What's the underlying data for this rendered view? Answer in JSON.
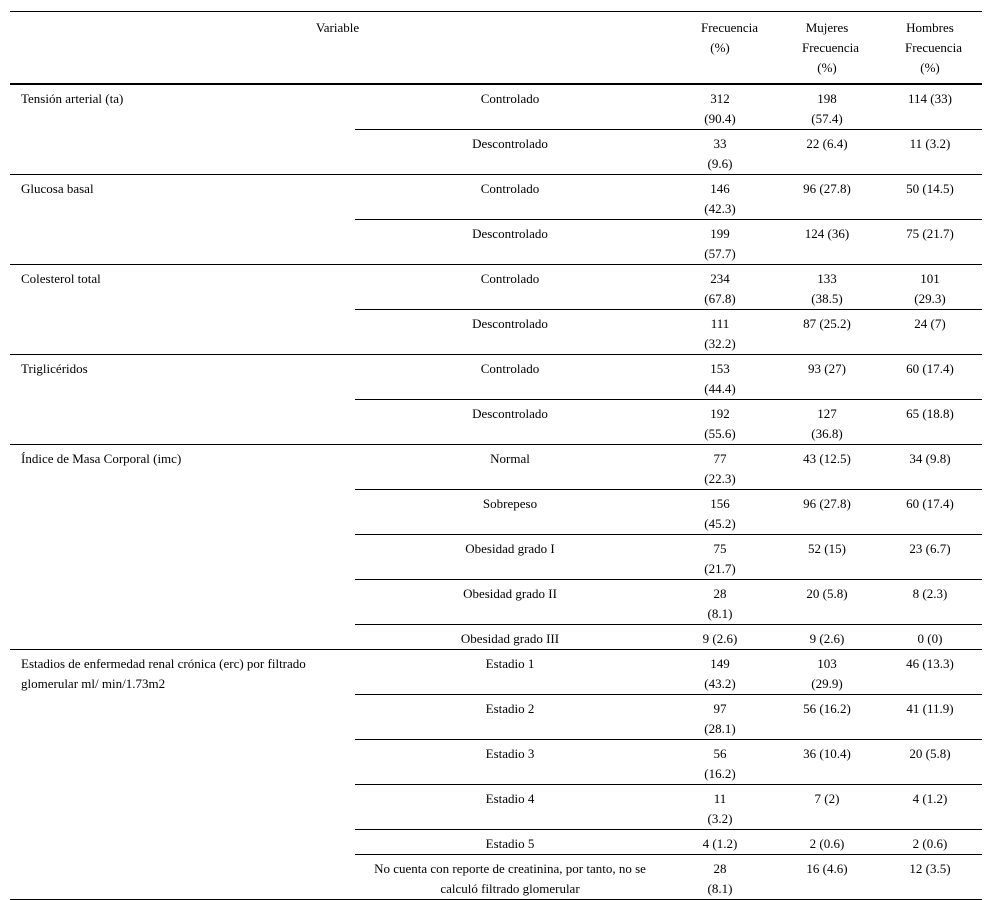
{
  "table": {
    "header": [
      "Variable",
      "Frecuencia (%)",
      "Mujeres Frecuencia (%)",
      "Hombres Frecuencia (%)"
    ],
    "groups": [
      {
        "variable": "Tensión arterial (ta)",
        "rows": [
          [
            "Controlado",
            "312 (90.4)",
            "198 (57.4)",
            "114 (33)"
          ],
          [
            "Descontrolado",
            "33 (9.6)",
            "22 (6.4)",
            "11 (3.2)"
          ]
        ]
      },
      {
        "variable": "Glucosa basal",
        "rows": [
          [
            "Controlado",
            "146 (42.3)",
            "96 (27.8)",
            "50 (14.5)"
          ],
          [
            "Descontrolado",
            "199 (57.7)",
            "124 (36)",
            "75 (21.7)"
          ]
        ]
      },
      {
        "variable": "Colesterol total",
        "rows": [
          [
            "Controlado",
            "234 (67.8)",
            "133 (38.5)",
            "101 (29.3)"
          ],
          [
            "Descontrolado",
            "111 (32.2)",
            "87 (25.2)",
            "24 (7)"
          ]
        ]
      },
      {
        "variable": "Triglicéridos",
        "rows": [
          [
            "Controlado",
            "153 (44.4)",
            "93 (27)",
            "60 (17.4)"
          ],
          [
            "Descontrolado",
            "192 (55.6)",
            "127 (36.8)",
            "65 (18.8)"
          ]
        ]
      },
      {
        "variable": "Índice de Masa Corporal (imc)",
        "rows": [
          [
            "Normal",
            "77 (22.3)",
            "43 (12.5)",
            "34 (9.8)"
          ],
          [
            "Sobrepeso",
            "156 (45.2)",
            "96 (27.8)",
            "60 (17.4)"
          ],
          [
            "Obesidad grado I",
            "75 (21.7)",
            "52 (15)",
            "23 (6.7)"
          ],
          [
            "Obesidad grado II",
            "28 (8.1)",
            "20 (5.8)",
            "8 (2.3)"
          ],
          [
            "Obesidad grado III",
            "9 (2.6)",
            "9 (2.6)",
            "0 (0)"
          ]
        ]
      },
      {
        "variable": "Estadios de enfermedad renal crónica (erc) por filtrado glomerular ml/ min/1.73m2",
        "rows": [
          [
            "Estadio 1",
            "149 (43.2)",
            "103 (29.9)",
            "46 (13.3)"
          ],
          [
            "Estadio 2",
            "97 (28.1)",
            "56 (16.2)",
            "41 (11.9)"
          ],
          [
            "Estadio 3",
            "56 (16.2)",
            "36 (10.4)",
            "20 (5.8)"
          ],
          [
            "Estadio 4",
            "11 (3.2)",
            "7 (2)",
            "4 (1.2)"
          ],
          [
            "Estadio 5",
            "4 (1.2)",
            "2 (0.6)",
            "2 (0.6)"
          ],
          [
            "No cuenta con reporte de creatinina, por tanto, no se calculó filtrado glomerular",
            "28 (8.1)",
            "16 (4.6)",
            "12 (3.5)"
          ]
        ]
      }
    ]
  }
}
